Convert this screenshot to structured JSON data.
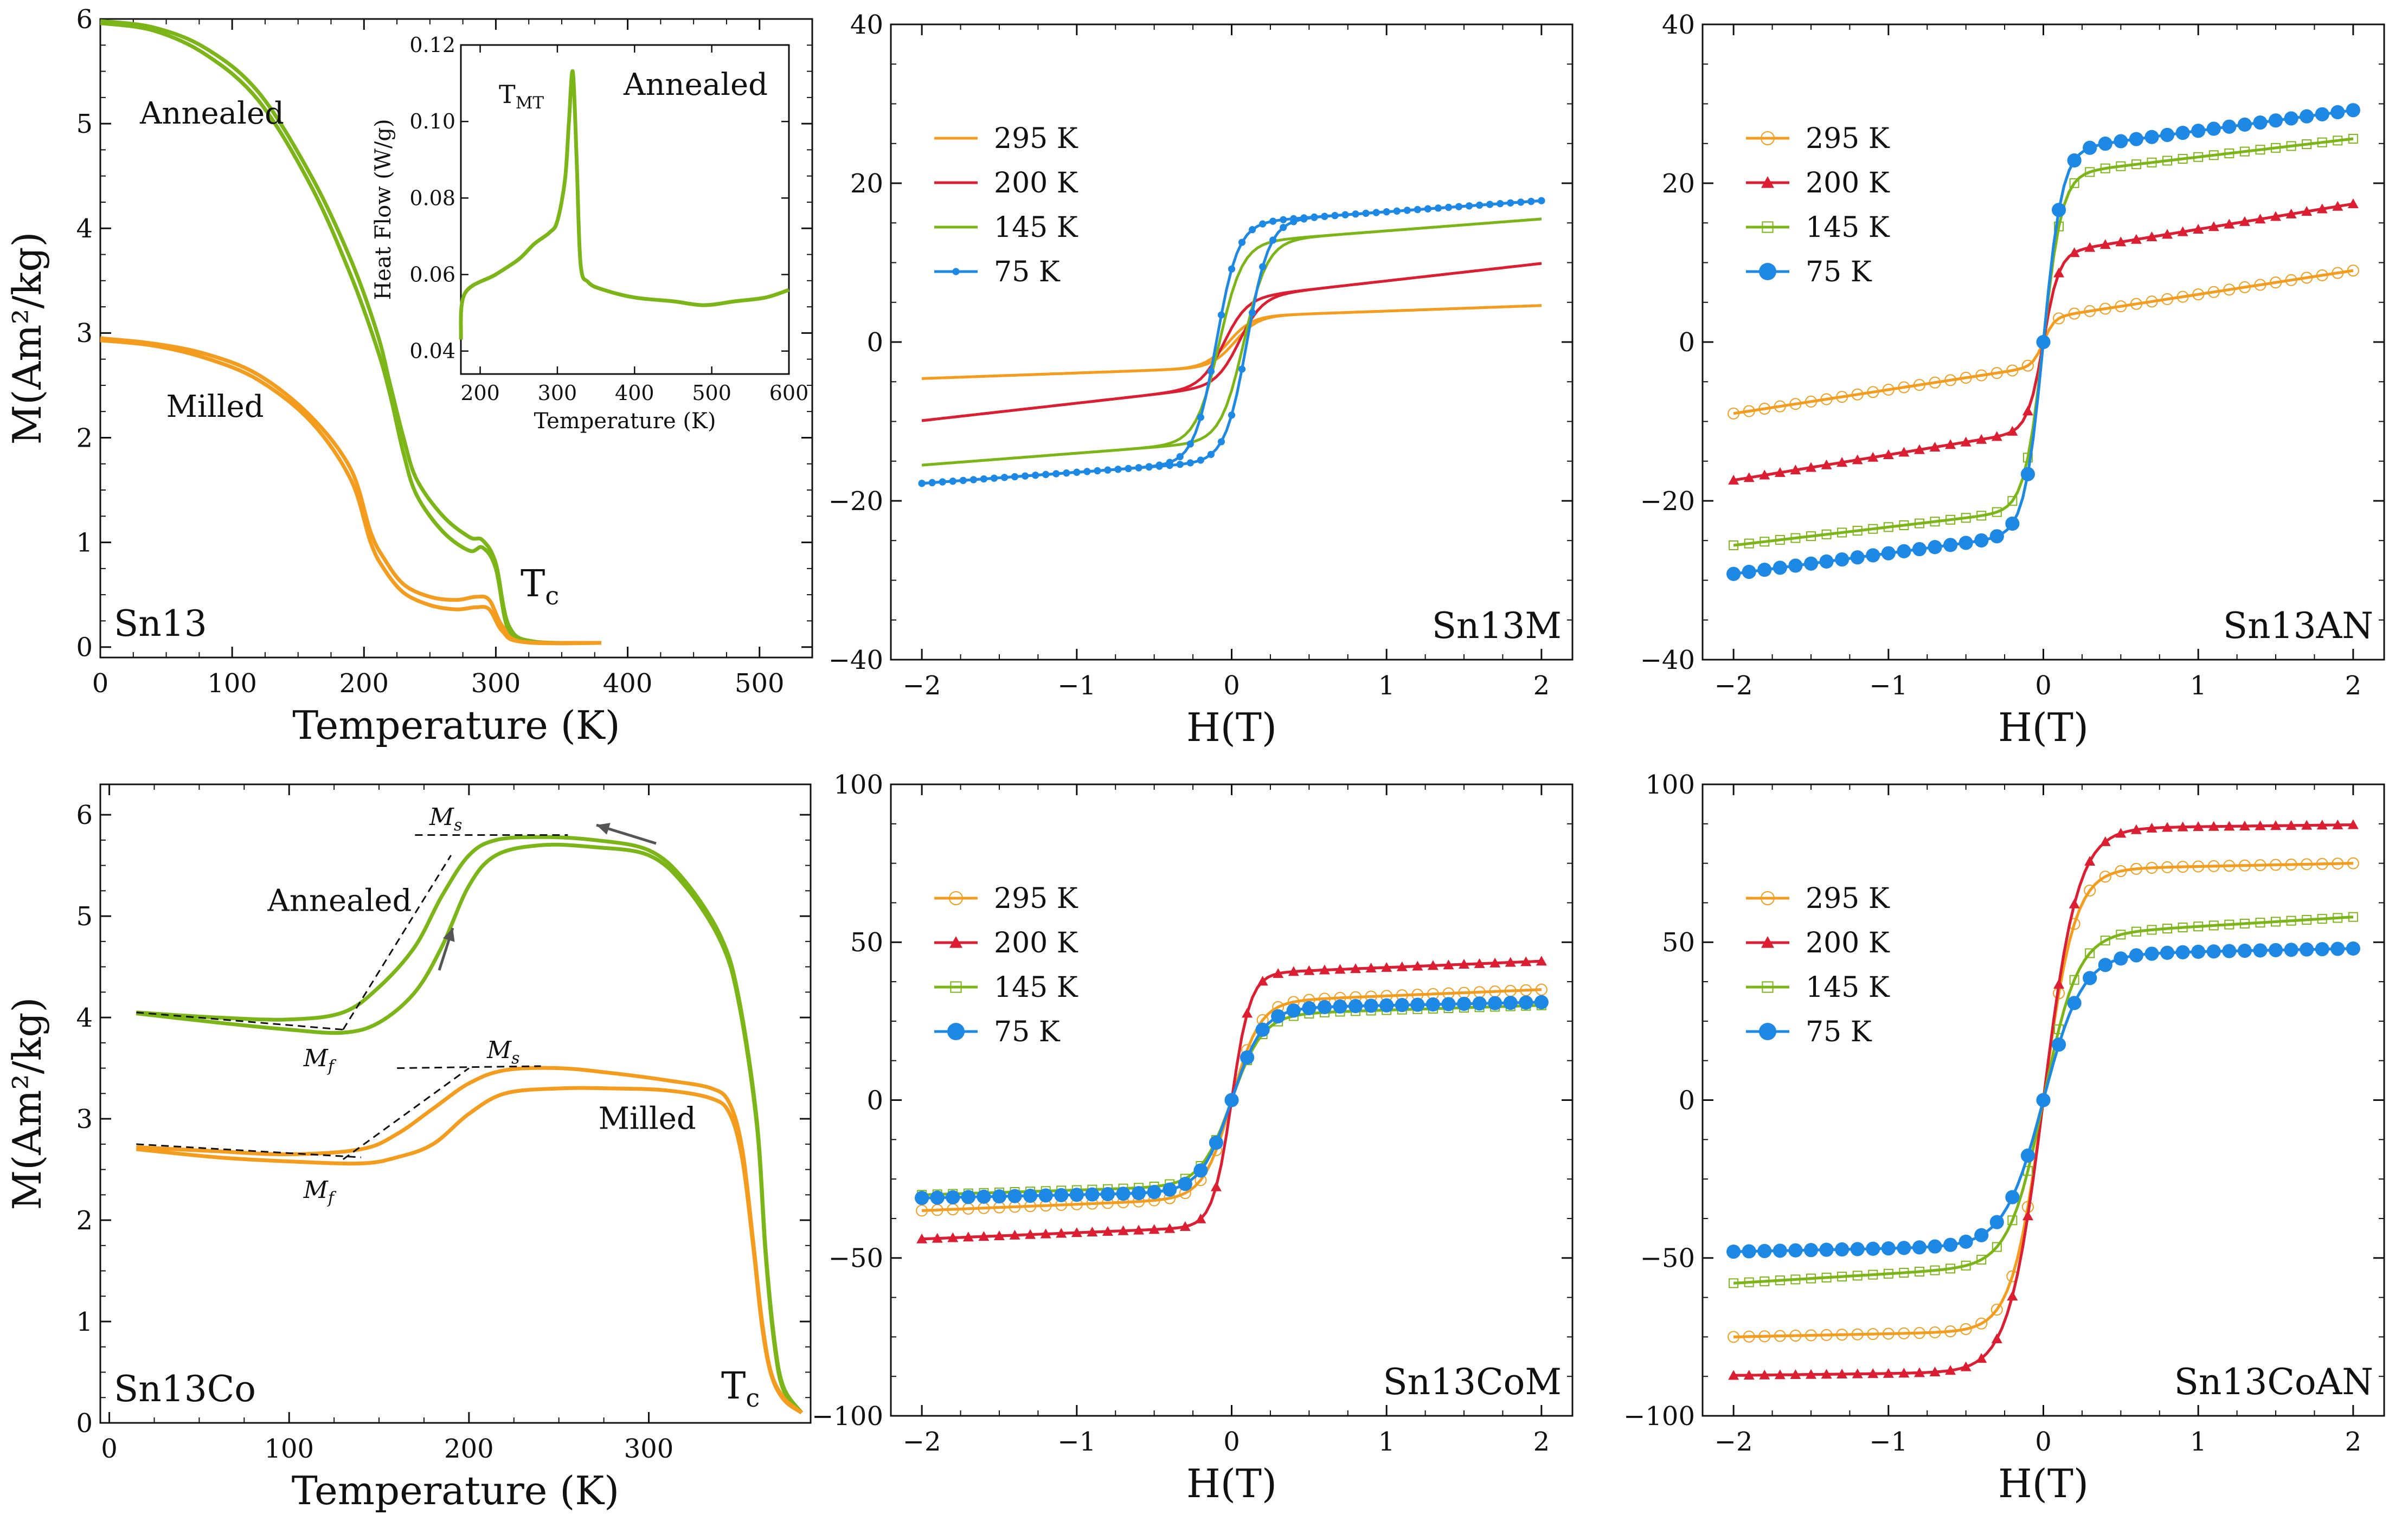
{
  "figure": {
    "panels": [
      {
        "id": "p1",
        "type": "mt",
        "label": "Sn13",
        "xlabel": "Temperature (K)",
        "ylabel": "M(Am²/kg)",
        "xlim": [
          0,
          540
        ],
        "ylim": [
          -0.1,
          6
        ],
        "xticks": [
          "0",
          "100",
          "200",
          "300",
          "400",
          "500"
        ],
        "yticks": [
          "0",
          "1",
          "2",
          "3",
          "4",
          "5",
          "6"
        ],
        "tc_label": "T",
        "tc_sub": "c",
        "series": [
          {
            "name": "Annealed",
            "color": "#7cb518",
            "branches": [
              {
                "x": [
                  0,
                  40,
                  80,
                  120,
                  160,
                  190,
                  210,
                  220,
                  230,
                  240,
                  260,
                  280,
                  290,
                  300,
                  310,
                  330,
                  380
                ],
                "y": [
                  5.98,
                  5.92,
                  5.72,
                  5.3,
                  4.5,
                  3.7,
                  3.0,
                  2.5,
                  2.0,
                  1.6,
                  1.25,
                  1.05,
                  1.02,
                  0.8,
                  0.2,
                  0.05,
                  0.04
                ]
              },
              {
                "x": [
                  0,
                  40,
                  80,
                  120,
                  160,
                  190,
                  210,
                  220,
                  230,
                  240,
                  260,
                  280,
                  290,
                  300,
                  310,
                  330,
                  380
                ],
                "y": [
                  5.96,
                  5.89,
                  5.66,
                  5.22,
                  4.4,
                  3.55,
                  2.85,
                  2.4,
                  1.85,
                  1.45,
                  1.1,
                  0.92,
                  0.95,
                  0.75,
                  0.15,
                  0.05,
                  0.04
                ]
              }
            ]
          },
          {
            "name": "Milled",
            "color": "#f39c1e",
            "branches": [
              {
                "x": [
                  0,
                  40,
                  80,
                  120,
                  160,
                  190,
                  205,
                  215,
                  230,
                  250,
                  270,
                  285,
                  295,
                  305,
                  320,
                  380
                ],
                "y": [
                  2.95,
                  2.9,
                  2.8,
                  2.6,
                  2.2,
                  1.7,
                  1.1,
                  0.85,
                  0.6,
                  0.48,
                  0.45,
                  0.48,
                  0.45,
                  0.2,
                  0.05,
                  0.04
                ]
              },
              {
                "x": [
                  0,
                  40,
                  80,
                  120,
                  160,
                  190,
                  205,
                  215,
                  230,
                  250,
                  270,
                  285,
                  295,
                  305,
                  320,
                  380
                ],
                "y": [
                  2.93,
                  2.88,
                  2.76,
                  2.55,
                  2.15,
                  1.6,
                  1.0,
                  0.75,
                  0.52,
                  0.4,
                  0.36,
                  0.38,
                  0.36,
                  0.15,
                  0.05,
                  0.04
                ]
              }
            ]
          }
        ],
        "labels": [
          {
            "text": "Annealed",
            "x": 30,
            "y": 5.0
          },
          {
            "text": "Milled",
            "x": 50,
            "y": 2.2
          }
        ],
        "inset": {
          "xlabel": "Temperature (K)",
          "ylabel": "Heat Flow (W/g)",
          "xlim": [
            175,
            600
          ],
          "ylim": [
            0.034,
            0.12
          ],
          "xticks": [
            "200",
            "300",
            "400",
            "500",
            "600"
          ],
          "yticks": [
            "0.04",
            "0.06",
            "0.08",
            "0.10",
            "0.12"
          ],
          "text_tmt": "T",
          "text_tmt_sub": "MT",
          "text_right": "Annealed",
          "color": "#7cb518",
          "x": [
            175,
            180,
            220,
            250,
            270,
            290,
            300,
            310,
            315,
            320,
            325,
            330,
            340,
            360,
            400,
            450,
            490,
            530,
            570,
            600
          ],
          "y": [
            0.043,
            0.055,
            0.06,
            0.064,
            0.068,
            0.071,
            0.074,
            0.085,
            0.1,
            0.113,
            0.09,
            0.063,
            0.058,
            0.056,
            0.054,
            0.053,
            0.052,
            0.053,
            0.054,
            0.056
          ]
        }
      },
      {
        "id": "p2",
        "type": "mh",
        "label": "Sn13M",
        "xlabel": "H(T)",
        "xlim": [
          -2.2,
          2.2
        ],
        "ylim": [
          -40,
          40
        ],
        "xticks": [
          "−2",
          "−1",
          "0",
          "1",
          "2"
        ],
        "yticks": [
          "−40",
          "−20",
          "0",
          "20",
          "40"
        ],
        "series": [
          {
            "name": "295 K",
            "color": "#f39c1e",
            "marker": "dash",
            "ms": 3.2,
            "chi": 0.7,
            "hc": 0.02,
            "w": 0.15,
            "open": false,
            "fill": false
          },
          {
            "name": "200 K",
            "color": "#dc1e32",
            "marker": "dash",
            "ms": 5.5,
            "chi": 2.2,
            "hc": 0.05,
            "w": 0.15,
            "open": false,
            "fill": false
          },
          {
            "name": "145 K",
            "color": "#7cb518",
            "marker": "dash",
            "ms": 12.5,
            "chi": 1.5,
            "hc": 0.08,
            "w": 0.15,
            "open": false,
            "fill": false
          },
          {
            "name": "75 K",
            "color": "#1e88e5",
            "marker": "dot",
            "ms": 15.0,
            "chi": 1.4,
            "hc": 0.1,
            "w": 0.14,
            "open": false,
            "fill": false
          }
        ]
      },
      {
        "id": "p3",
        "type": "mh",
        "label": "Sn13AN",
        "xlabel": "H(T)",
        "xlim": [
          -2.2,
          2.2
        ],
        "ylim": [
          -40,
          40
        ],
        "xticks": [
          "−2",
          "−1",
          "0",
          "1",
          "2"
        ],
        "yticks": [
          "−40",
          "−20",
          "0",
          "20",
          "40"
        ],
        "series": [
          {
            "name": "295 K",
            "color": "#f39c1e",
            "marker": "ocircle",
            "ms": 3.0,
            "chi": 3.0,
            "hc": 0.0,
            "w": 0.07,
            "open": true,
            "fill": false
          },
          {
            "name": "200 K",
            "color": "#dc1e32",
            "marker": "tri",
            "ms": 11.0,
            "chi": 3.2,
            "hc": 0.0,
            "w": 0.1,
            "open": false,
            "fill": true
          },
          {
            "name": "145 K",
            "color": "#7cb518",
            "marker": "osquare",
            "ms": 21.0,
            "chi": 2.3,
            "hc": 0.0,
            "w": 0.12,
            "open": true,
            "fill": false
          },
          {
            "name": "75 K",
            "color": "#1e88e5",
            "marker": "circle",
            "ms": 24.0,
            "chi": 2.6,
            "hc": 0.0,
            "w": 0.12,
            "open": false,
            "fill": true
          }
        ]
      },
      {
        "id": "p4",
        "type": "mt",
        "label": "Sn13Co",
        "xlabel": "Temperature (K)",
        "ylabel": "M(Am²/kg)",
        "xlim": [
          -5,
          390
        ],
        "ylim": [
          0,
          6.3
        ],
        "xticks": [
          "0",
          "100",
          "200",
          "300"
        ],
        "yticks": [
          "0",
          "1",
          "2",
          "3",
          "4",
          "5",
          "6"
        ],
        "tc_label": "T",
        "tc_sub": "c",
        "series": [
          {
            "name": "Annealed",
            "color": "#7cb518",
            "branches": [
              {
                "x": [
                  15,
                  60,
                  100,
                  130,
                  150,
                  170,
                  185,
                  200,
                  215,
                  240,
                  270,
                  300,
                  320,
                  340,
                  350,
                  360,
                  365,
                  370,
                  375,
                  385
                ],
                "y": [
                  4.05,
                  4.0,
                  3.98,
                  4.05,
                  4.3,
                  4.7,
                  5.2,
                  5.6,
                  5.75,
                  5.78,
                  5.75,
                  5.65,
                  5.35,
                  4.8,
                  4.2,
                  3.0,
                  1.7,
                  0.8,
                  0.35,
                  0.1
                ]
              },
              {
                "x": [
                  15,
                  60,
                  100,
                  130,
                  150,
                  170,
                  185,
                  200,
                  215,
                  240,
                  270,
                  300,
                  320,
                  340,
                  350,
                  360,
                  365,
                  370,
                  375,
                  385
                ],
                "y": [
                  4.04,
                  3.95,
                  3.88,
                  3.85,
                  3.95,
                  4.25,
                  4.7,
                  5.3,
                  5.6,
                  5.7,
                  5.68,
                  5.6,
                  5.3,
                  4.75,
                  4.15,
                  2.95,
                  1.65,
                  0.75,
                  0.32,
                  0.1
                ]
              }
            ]
          },
          {
            "name": "Milled",
            "color": "#f39c1e",
            "branches": [
              {
                "x": [
                  15,
                  60,
                  100,
                  140,
                  160,
                  180,
                  200,
                  220,
                  250,
                  280,
                  310,
                  335,
                  345,
                  352,
                  358,
                  363,
                  368,
                  375,
                  385
                ],
                "y": [
                  2.72,
                  2.68,
                  2.65,
                  2.7,
                  2.85,
                  3.1,
                  3.35,
                  3.48,
                  3.5,
                  3.45,
                  3.38,
                  3.3,
                  3.15,
                  2.7,
                  1.8,
                  1.0,
                  0.5,
                  0.25,
                  0.1
                ]
              },
              {
                "x": [
                  15,
                  60,
                  100,
                  140,
                  160,
                  180,
                  200,
                  220,
                  250,
                  280,
                  310,
                  335,
                  345,
                  352,
                  358,
                  363,
                  368,
                  375,
                  385
                ],
                "y": [
                  2.7,
                  2.62,
                  2.58,
                  2.56,
                  2.62,
                  2.75,
                  3.05,
                  3.25,
                  3.3,
                  3.3,
                  3.28,
                  3.2,
                  3.05,
                  2.6,
                  1.75,
                  0.95,
                  0.48,
                  0.23,
                  0.1
                ]
              }
            ]
          }
        ],
        "labels": [
          {
            "text": "Annealed",
            "x": 88,
            "y": 5.05
          },
          {
            "text": "Milled",
            "x": 272,
            "y": 2.9
          }
        ],
        "ms_label": "M",
        "ms_sub": "s",
        "mf_label": "M",
        "mf_sub": "f"
      },
      {
        "id": "p5",
        "type": "mh",
        "label": "Sn13CoM",
        "xlabel": "H(T)",
        "xlim": [
          -2.2,
          2.2
        ],
        "ylim": [
          -100,
          100
        ],
        "xticks": [
          "−2",
          "−1",
          "0",
          "1",
          "2"
        ],
        "yticks": [
          "−100",
          "−50",
          "0",
          "50",
          "100"
        ],
        "series": [
          {
            "name": "295 K",
            "color": "#f39c1e",
            "marker": "ocircle",
            "ms": 31.0,
            "chi": 2.0,
            "hc": 0.0,
            "w": 0.18,
            "open": true,
            "fill": false
          },
          {
            "name": "200 K",
            "color": "#dc1e32",
            "marker": "tri",
            "ms": 40.0,
            "chi": 2.0,
            "hc": 0.0,
            "w": 0.12,
            "open": false,
            "fill": true
          },
          {
            "name": "145 K",
            "color": "#7cb518",
            "marker": "osquare",
            "ms": 27.0,
            "chi": 1.5,
            "hc": 0.0,
            "w": 0.2,
            "open": true,
            "fill": false
          },
          {
            "name": "75 K",
            "color": "#1e88e5",
            "marker": "circle",
            "ms": 29.0,
            "chi": 1.0,
            "hc": 0.0,
            "w": 0.2,
            "open": false,
            "fill": true
          }
        ]
      },
      {
        "id": "p6",
        "type": "mh",
        "label": "Sn13CoAN",
        "xlabel": "H(T)",
        "xlim": [
          -2.2,
          2.2
        ],
        "ylim": [
          -100,
          100
        ],
        "xticks": [
          "−2",
          "−1",
          "0",
          "1",
          "2"
        ],
        "yticks": [
          "−100",
          "−50",
          "0",
          "50",
          "100"
        ],
        "series": [
          {
            "name": "295 K",
            "color": "#f39c1e",
            "marker": "ocircle",
            "ms": 73.0,
            "chi": 1.0,
            "hc": 0.0,
            "w": 0.2,
            "open": true,
            "fill": false
          },
          {
            "name": "200 K",
            "color": "#dc1e32",
            "marker": "tri",
            "ms": 86.0,
            "chi": 0.6,
            "hc": 0.0,
            "w": 0.22,
            "open": false,
            "fill": true
          },
          {
            "name": "145 K",
            "color": "#7cb518",
            "marker": "osquare",
            "ms": 52.0,
            "chi": 3.0,
            "hc": 0.0,
            "w": 0.22,
            "open": true,
            "fill": false
          },
          {
            "name": "75 K",
            "color": "#1e88e5",
            "marker": "circle",
            "ms": 46.0,
            "chi": 1.0,
            "hc": 0.0,
            "w": 0.25,
            "open": false,
            "fill": true
          }
        ]
      }
    ]
  }
}
